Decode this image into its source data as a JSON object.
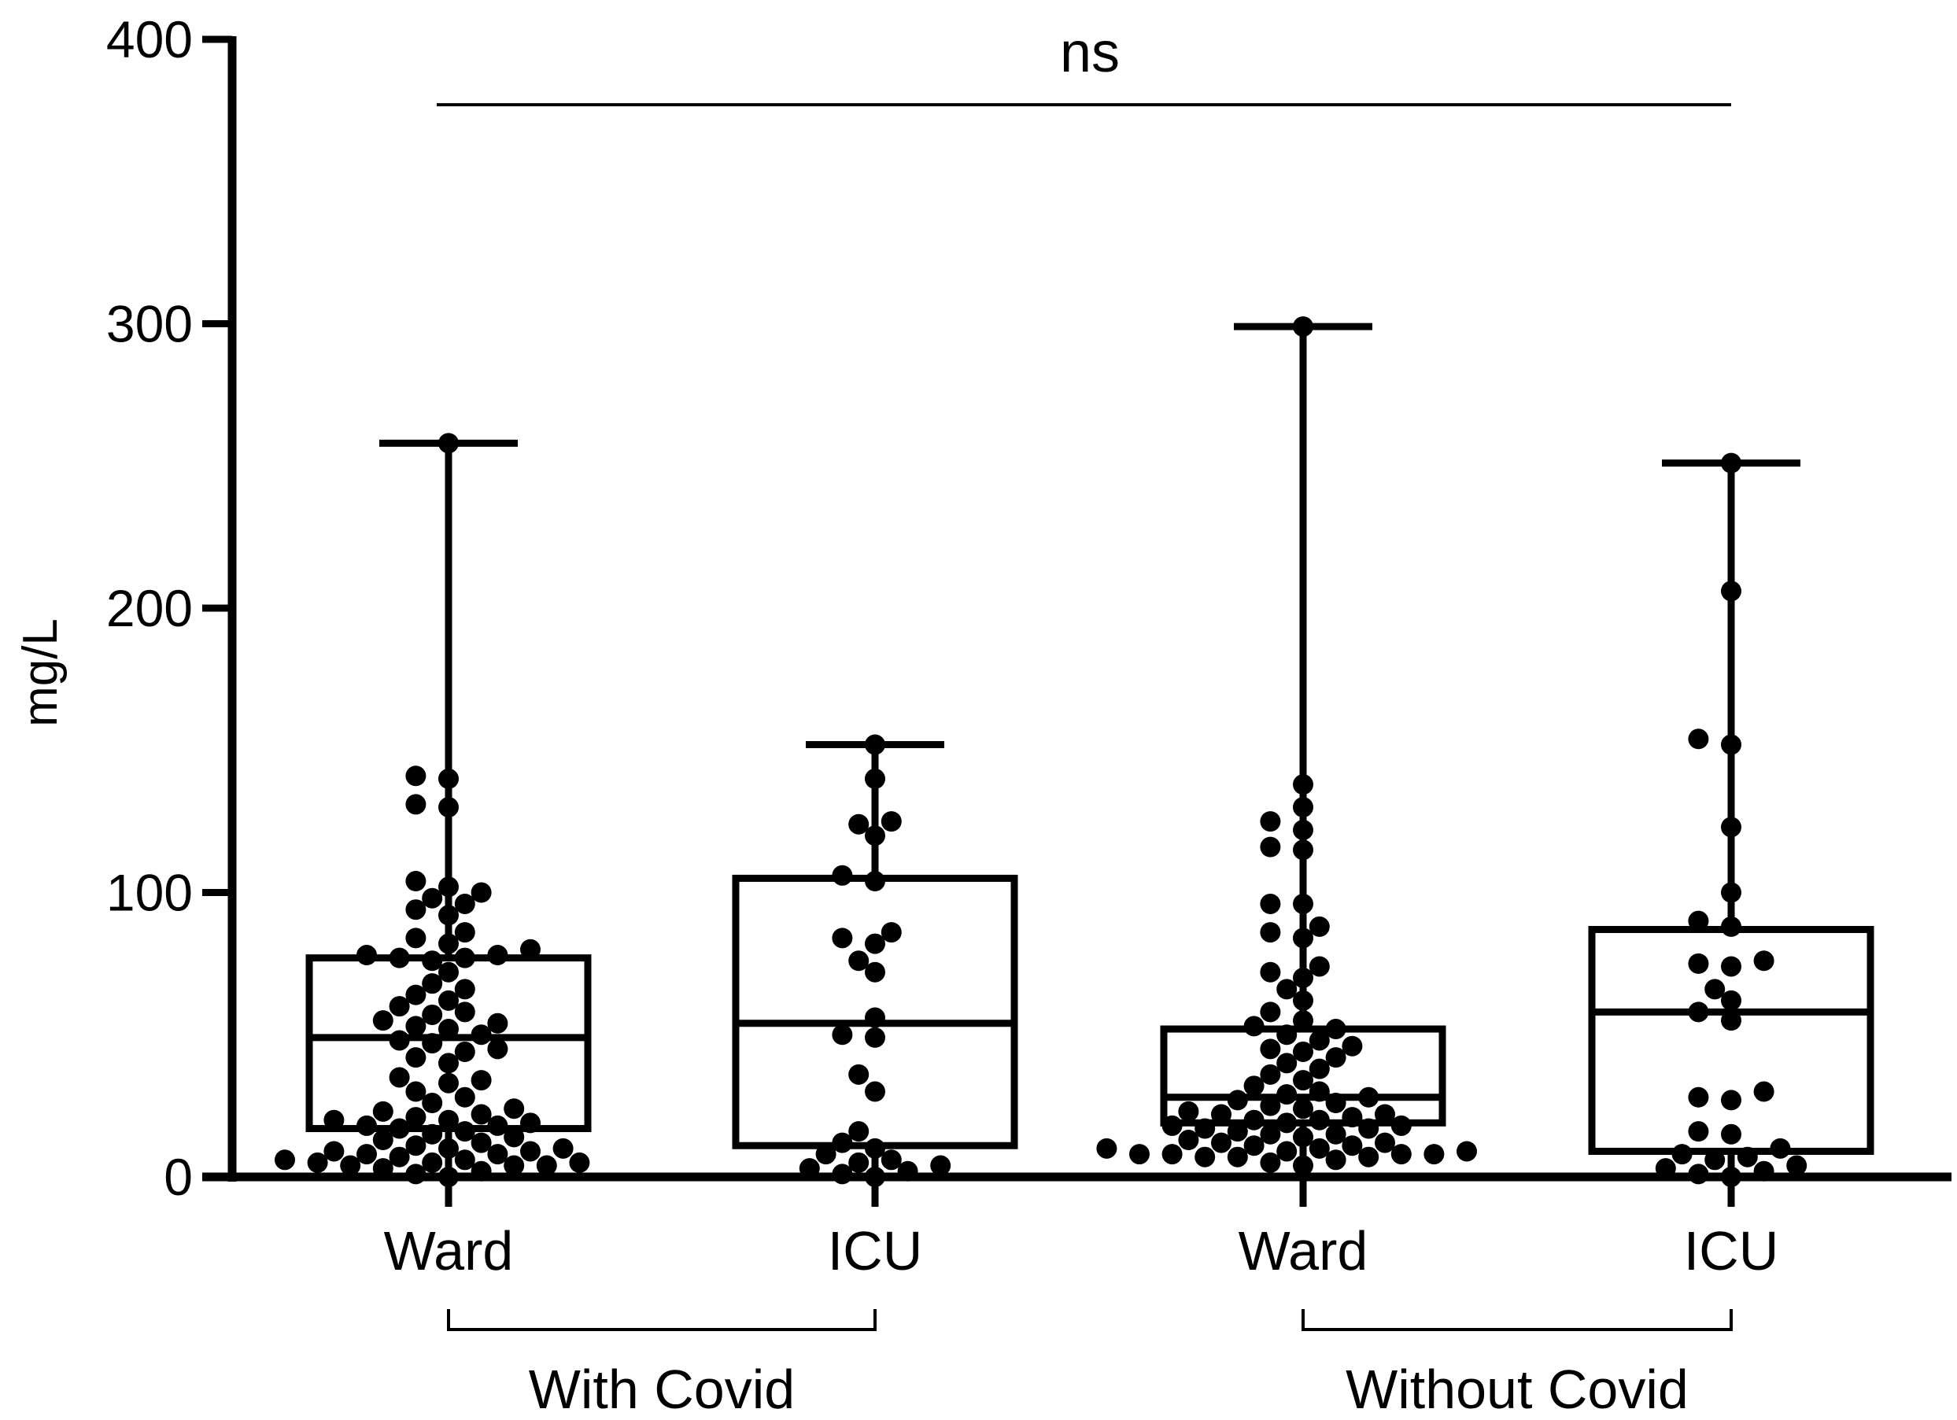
{
  "chart_data": {
    "type": "box",
    "ylabel": "mg/L",
    "ylim": [
      0,
      400
    ],
    "yticks": [
      0,
      100,
      200,
      300,
      400
    ],
    "categories": [
      "Ward",
      "ICU",
      "Ward",
      "ICU"
    ],
    "groups": [
      {
        "label": "With Covid",
        "members": [
          0,
          1
        ]
      },
      {
        "label": "Without Covid",
        "members": [
          2,
          3
        ]
      }
    ],
    "significance": {
      "label": "ns",
      "from": 0,
      "to": 3,
      "y": 377
    },
    "color": "#000000",
    "boxes": [
      {
        "min": 0,
        "q1": 17,
        "median": 49,
        "q3": 77,
        "max": 258,
        "points": [
          0,
          1,
          2,
          3,
          4,
          4,
          4,
          5,
          5,
          5,
          6,
          6,
          7,
          8,
          8,
          9,
          9,
          10,
          10,
          11,
          12,
          13,
          14,
          15,
          16,
          17,
          18,
          18,
          19,
          20,
          20,
          21,
          22,
          23,
          24,
          26,
          28,
          30,
          33,
          34,
          35,
          40,
          42,
          44,
          45,
          47,
          48,
          50,
          52,
          53,
          54,
          55,
          57,
          58,
          60,
          62,
          64,
          66,
          68,
          72,
          76,
          77,
          77,
          78,
          78,
          80,
          82,
          84,
          86,
          92,
          94,
          96,
          98,
          100,
          102,
          104,
          130,
          131,
          140,
          141,
          258
        ]
      },
      {
        "min": 0,
        "q1": 11,
        "median": 54,
        "q3": 105,
        "max": 152,
        "points": [
          0,
          1,
          2,
          3,
          4,
          5,
          6,
          8,
          10,
          12,
          16,
          30,
          36,
          49,
          50,
          56,
          72,
          76,
          82,
          84,
          86,
          104,
          106,
          120,
          124,
          125,
          140,
          152
        ]
      },
      {
        "min": 4,
        "q1": 19,
        "median": 28,
        "q3": 52,
        "max": 299,
        "points": [
          4,
          5,
          6,
          7,
          7,
          7,
          8,
          8,
          8,
          8,
          9,
          9,
          10,
          10,
          11,
          11,
          12,
          12,
          13,
          14,
          15,
          15,
          16,
          17,
          17,
          18,
          18,
          19,
          20,
          20,
          21,
          22,
          22,
          23,
          24,
          25,
          26,
          27,
          28,
          29,
          30,
          32,
          34,
          36,
          38,
          40,
          42,
          44,
          45,
          46,
          48,
          50,
          52,
          53,
          55,
          58,
          62,
          66,
          70,
          72,
          74,
          84,
          86,
          88,
          96,
          96,
          115,
          116,
          122,
          125,
          130,
          138,
          299
        ]
      },
      {
        "min": 0,
        "q1": 9,
        "median": 58,
        "q3": 87,
        "max": 251,
        "points": [
          0,
          1,
          2,
          3,
          4,
          6,
          7,
          8,
          10,
          15,
          16,
          27,
          28,
          30,
          55,
          58,
          62,
          66,
          74,
          75,
          76,
          88,
          90,
          100,
          123,
          152,
          154,
          206,
          251
        ]
      }
    ]
  }
}
